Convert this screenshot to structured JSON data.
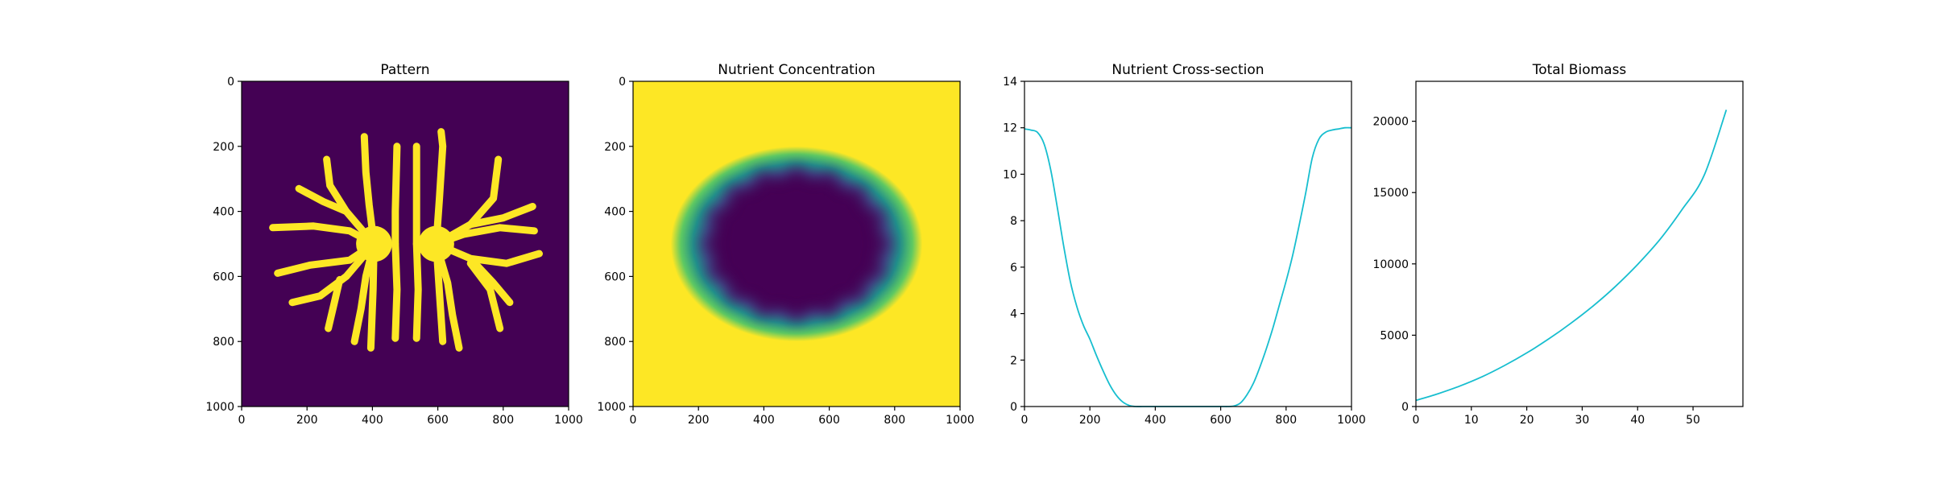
{
  "colors": {
    "viridis_low": "#440154",
    "viridis_mid": "#21918c",
    "viridis_high": "#fde725",
    "line": "#17becf"
  },
  "chart_data": [
    {
      "type": "heatmap",
      "title": "Pattern",
      "xlim": [
        0,
        1000
      ],
      "ylim": [
        1000,
        0
      ],
      "xticks": [
        "0",
        "200",
        "400",
        "600",
        "800",
        "1000"
      ],
      "yticks": [
        "0",
        "200",
        "400",
        "600",
        "800",
        "1000"
      ],
      "colormap": "viridis",
      "description_values": {
        "background": 0,
        "pattern": 1
      },
      "colonies": [
        {
          "center": [
            405,
            500
          ],
          "radius": 55
        },
        {
          "center": [
            595,
            500
          ],
          "radius": 55
        }
      ],
      "branches": [
        [
          [
            405,
            500
          ],
          [
            320,
            400
          ],
          [
            250,
            370
          ],
          [
            175,
            330
          ]
        ],
        [
          [
            320,
            400
          ],
          [
            270,
            320
          ],
          [
            260,
            240
          ]
        ],
        [
          [
            405,
            500
          ],
          [
            330,
            460
          ],
          [
            220,
            445
          ],
          [
            95,
            450
          ]
        ],
        [
          [
            405,
            500
          ],
          [
            330,
            550
          ],
          [
            210,
            565
          ],
          [
            110,
            590
          ]
        ],
        [
          [
            405,
            500
          ],
          [
            320,
            600
          ],
          [
            240,
            660
          ],
          [
            155,
            680
          ]
        ],
        [
          [
            300,
            610
          ],
          [
            265,
            760
          ]
        ],
        [
          [
            405,
            500
          ],
          [
            380,
            600
          ],
          [
            365,
            700
          ],
          [
            345,
            800
          ]
        ],
        [
          [
            405,
            500
          ],
          [
            390,
            380
          ],
          [
            380,
            280
          ],
          [
            375,
            170
          ]
        ],
        [
          [
            405,
            500
          ],
          [
            402,
            640
          ],
          [
            395,
            820
          ]
        ],
        [
          [
            470,
            500
          ],
          [
            470,
            400
          ],
          [
            475,
            200
          ]
        ],
        [
          [
            470,
            500
          ],
          [
            475,
            640
          ],
          [
            470,
            790
          ]
        ],
        [
          [
            535,
            500
          ],
          [
            535,
            390
          ],
          [
            535,
            200
          ]
        ],
        [
          [
            535,
            500
          ],
          [
            540,
            640
          ],
          [
            535,
            790
          ]
        ],
        [
          [
            595,
            500
          ],
          [
            605,
            360
          ],
          [
            615,
            200
          ],
          [
            610,
            155
          ]
        ],
        [
          [
            595,
            500
          ],
          [
            605,
            650
          ],
          [
            615,
            800
          ]
        ],
        [
          [
            595,
            500
          ],
          [
            630,
            620
          ],
          [
            645,
            720
          ],
          [
            665,
            820
          ]
        ],
        [
          [
            595,
            500
          ],
          [
            700,
            440
          ],
          [
            800,
            420
          ],
          [
            890,
            385
          ]
        ],
        [
          [
            700,
            440
          ],
          [
            770,
            360
          ],
          [
            785,
            240
          ]
        ],
        [
          [
            595,
            500
          ],
          [
            700,
            545
          ],
          [
            810,
            560
          ],
          [
            910,
            530
          ]
        ],
        [
          [
            700,
            545
          ],
          [
            770,
            620
          ],
          [
            820,
            680
          ]
        ],
        [
          [
            595,
            500
          ],
          [
            680,
            470
          ],
          [
            790,
            450
          ],
          [
            895,
            460
          ]
        ],
        [
          [
            700,
            560
          ],
          [
            760,
            640
          ],
          [
            790,
            760
          ]
        ]
      ]
    },
    {
      "type": "heatmap",
      "title": "Nutrient Concentration",
      "xlim": [
        0,
        1000
      ],
      "ylim": [
        1000,
        0
      ],
      "xticks": [
        "0",
        "200",
        "400",
        "600",
        "800",
        "1000"
      ],
      "yticks": [
        "0",
        "200",
        "400",
        "600",
        "800",
        "1000"
      ],
      "colormap": "viridis",
      "depleted_region": {
        "center": [
          500,
          500
        ],
        "radius_x": 385,
        "radius_y": 300,
        "max_value": 12,
        "min_value": 0
      }
    },
    {
      "type": "line",
      "title": "Nutrient Cross-section",
      "xlim": [
        0,
        1000
      ],
      "ylim": [
        0,
        14
      ],
      "xticks": [
        "0",
        "200",
        "400",
        "600",
        "800",
        "1000"
      ],
      "yticks": [
        "0",
        "2",
        "4",
        "6",
        "8",
        "10",
        "12",
        "14"
      ],
      "series": [
        {
          "x": [
            0,
            20,
            40,
            60,
            80,
            100,
            120,
            140,
            160,
            180,
            200,
            220,
            240,
            260,
            280,
            300,
            320,
            340,
            360,
            380,
            400,
            500,
            600,
            620,
            640,
            660,
            680,
            700,
            720,
            740,
            760,
            780,
            800,
            820,
            840,
            860,
            880,
            900,
            920,
            940,
            960,
            980,
            1000
          ],
          "values": [
            11.95,
            11.9,
            11.8,
            11.3,
            10.2,
            8.6,
            6.9,
            5.4,
            4.3,
            3.5,
            2.9,
            2.2,
            1.55,
            0.95,
            0.5,
            0.2,
            0.05,
            0,
            0,
            0,
            0,
            0,
            0,
            0,
            0.02,
            0.15,
            0.5,
            1.0,
            1.7,
            2.5,
            3.4,
            4.4,
            5.4,
            6.5,
            7.8,
            9.2,
            10.7,
            11.5,
            11.8,
            11.9,
            11.95,
            12.0,
            12.0
          ]
        }
      ]
    },
    {
      "type": "line",
      "title": "Total Biomass",
      "xlim": [
        0,
        59
      ],
      "ylim": [
        0,
        22800
      ],
      "xticks": [
        "0",
        "10",
        "20",
        "30",
        "40",
        "50"
      ],
      "yticks": [
        "0",
        "5000",
        "10000",
        "15000",
        "20000"
      ],
      "series": [
        {
          "x": [
            0,
            4,
            8,
            12,
            16,
            20,
            24,
            28,
            32,
            36,
            40,
            44,
            48,
            52,
            56
          ],
          "values": [
            430,
            900,
            1450,
            2100,
            2880,
            3760,
            4750,
            5850,
            7060,
            8420,
            9960,
            11700,
            13800,
            16200,
            20800
          ]
        }
      ]
    }
  ]
}
